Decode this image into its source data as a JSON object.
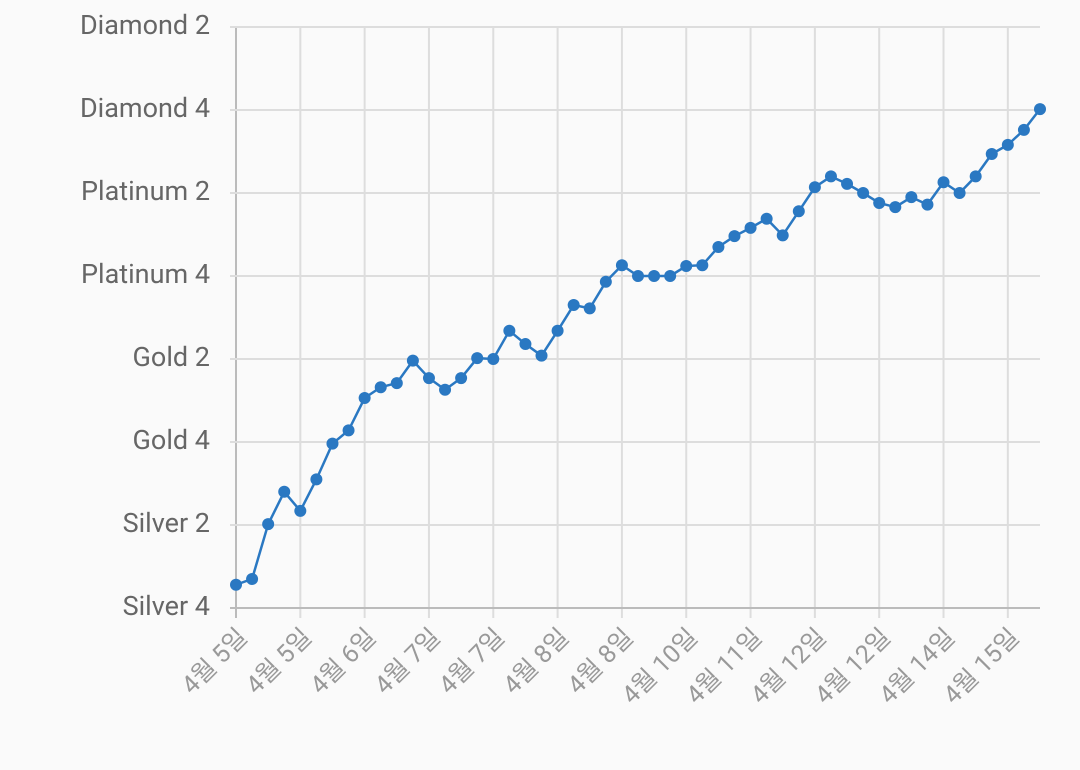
{
  "chart_data": {
    "type": "line",
    "categories": [
      "4월 5일",
      null,
      null,
      null,
      "4월 5일",
      null,
      null,
      null,
      "4월 6일",
      null,
      null,
      null,
      "4월 7일",
      null,
      null,
      null,
      "4월 7일",
      null,
      null,
      null,
      "4월 8일",
      null,
      null,
      null,
      "4월 8일",
      null,
      null,
      null,
      "4월 10일",
      null,
      null,
      null,
      "4월 11일",
      null,
      null,
      null,
      "4월 12일",
      null,
      null,
      null,
      "4월 12일",
      null,
      null,
      null,
      "4월 14일",
      null,
      null,
      null,
      "4월 15일",
      null,
      null
    ],
    "values": [
      0.28,
      0.35,
      1.01,
      1.4,
      1.17,
      1.55,
      1.98,
      2.14,
      2.53,
      2.66,
      2.71,
      2.98,
      2.77,
      2.63,
      2.77,
      3.01,
      3.0,
      3.34,
      3.18,
      3.04,
      3.34,
      3.65,
      3.61,
      3.93,
      4.13,
      4.0,
      4.0,
      4.0,
      4.12,
      4.13,
      4.35,
      4.48,
      4.58,
      4.69,
      4.49,
      4.78,
      5.07,
      5.2,
      5.11,
      5.0,
      4.88,
      4.83,
      4.95,
      4.86,
      5.13,
      5.0,
      5.2,
      5.47,
      5.58,
      5.76,
      6.01
    ],
    "color": "#2a78c2",
    "ylim": [
      0,
      7
    ],
    "yticks": [
      {
        "value": 0,
        "label": "Silver 4"
      },
      {
        "value": 1,
        "label": "Silver 2"
      },
      {
        "value": 2,
        "label": "Gold 4"
      },
      {
        "value": 3,
        "label": "Gold 2"
      },
      {
        "value": 4,
        "label": "Platinum 4"
      },
      {
        "value": 5,
        "label": "Platinum 2"
      },
      {
        "value": 6,
        "label": "Diamond 4"
      },
      {
        "value": 7,
        "label": "Diamond 2"
      }
    ],
    "grid": true
  }
}
